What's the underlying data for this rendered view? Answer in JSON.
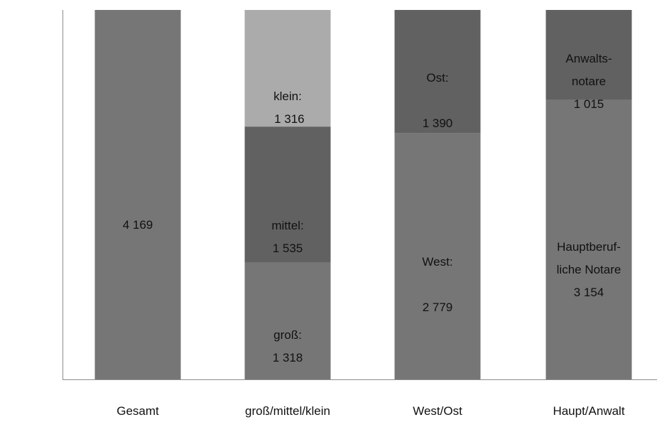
{
  "chart_data": {
    "type": "bar",
    "stacked": true,
    "categories": [
      "Gesamt",
      "groß/mittel/klein",
      "West/Ost",
      "Haupt/Anwalt"
    ],
    "ylim": [
      0,
      4169
    ],
    "grid": false,
    "legend": "none",
    "stacks": [
      {
        "category": "Gesamt",
        "segments": [
          {
            "value": 4169,
            "label_lines": [
              "4 169"
            ],
            "color": "#767676"
          }
        ]
      },
      {
        "category": "groß/mittel/klein",
        "segments": [
          {
            "value": 1318,
            "label_lines": [
              "groß:",
              "1 318"
            ],
            "color": "#767676"
          },
          {
            "value": 1535,
            "label_lines": [
              "mittel:",
              "1 535"
            ],
            "color": "#616161"
          },
          {
            "value": 1316,
            "label_lines": [
              "klein:",
              " 1 316"
            ],
            "color": "#ababab"
          }
        ]
      },
      {
        "category": "West/Ost",
        "segments": [
          {
            "value": 2779,
            "label_lines": [
              "West:",
              "",
              "2 779"
            ],
            "color": "#767676"
          },
          {
            "value": 1390,
            "label_lines": [
              "Ost:",
              "",
              "1 390"
            ],
            "color": "#616161"
          }
        ]
      },
      {
        "category": "Haupt/Anwalt",
        "segments": [
          {
            "value": 3154,
            "label_lines": [
              "Hauptberuf-",
              "liche Notare",
              "3 154"
            ],
            "color": "#767676"
          },
          {
            "value": 1015,
            "label_lines": [
              "Anwalts-",
              "notare",
              "1 015"
            ],
            "color": "#616161"
          }
        ]
      }
    ]
  }
}
